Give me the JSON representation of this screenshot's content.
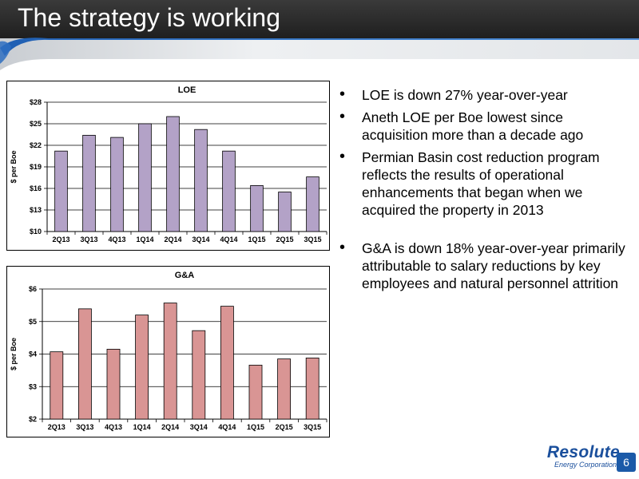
{
  "slide": {
    "title": "The strategy is working",
    "page_number": "6",
    "logo": {
      "name": "Resolute",
      "subtitle": "Energy Corporation"
    }
  },
  "colors": {
    "header_dark": "#2d2d2d",
    "header_light": "#dfe2e5",
    "header_swoosh": "#2f6fc1",
    "loe_bar": "#b3a2c7",
    "ga_bar": "#d99594",
    "logo_blue": "#1a4f9c"
  },
  "bullets": [
    "LOE is down 27% year-over-year",
    "Aneth LOE per Boe lowest since acquisition more than a decade ago",
    "Permian Basin cost reduction program reflects the results of operational enhancements that began when we acquired the property in 2013",
    "G&A is down 18% year-over-year primarily attributable to salary reductions by key employees and natural personnel attrition"
  ],
  "chart_data": [
    {
      "type": "bar",
      "title": "LOE",
      "ylabel": "$ per Boe",
      "categories": [
        "2Q13",
        "3Q13",
        "4Q13",
        "1Q14",
        "2Q14",
        "3Q14",
        "4Q14",
        "1Q15",
        "2Q15",
        "3Q15"
      ],
      "values": [
        21.2,
        23.4,
        23.1,
        25.0,
        26.0,
        24.2,
        21.2,
        16.4,
        15.5,
        17.6
      ],
      "ylim": [
        10,
        28
      ],
      "yticks": [
        10,
        13,
        16,
        19,
        22,
        25,
        28
      ],
      "ytick_labels": [
        "$10",
        "$13",
        "$16",
        "$19",
        "$22",
        "$25",
        "$28"
      ],
      "grid": true,
      "legend": "none",
      "color": "#b3a2c7"
    },
    {
      "type": "bar",
      "title": "G&A",
      "ylabel": "$ per Boe",
      "categories": [
        "2Q13",
        "3Q13",
        "4Q13",
        "1Q14",
        "2Q14",
        "3Q14",
        "4Q14",
        "1Q15",
        "2Q15",
        "3Q15"
      ],
      "values": [
        4.07,
        5.39,
        4.15,
        5.2,
        5.57,
        4.72,
        5.47,
        3.66,
        3.85,
        3.88
      ],
      "ylim": [
        2,
        6
      ],
      "yticks": [
        2,
        3,
        4,
        5,
        6
      ],
      "ytick_labels": [
        "$2",
        "$3",
        "$4",
        "$5",
        "$6"
      ],
      "grid": true,
      "legend": "none",
      "color": "#d99594"
    }
  ]
}
